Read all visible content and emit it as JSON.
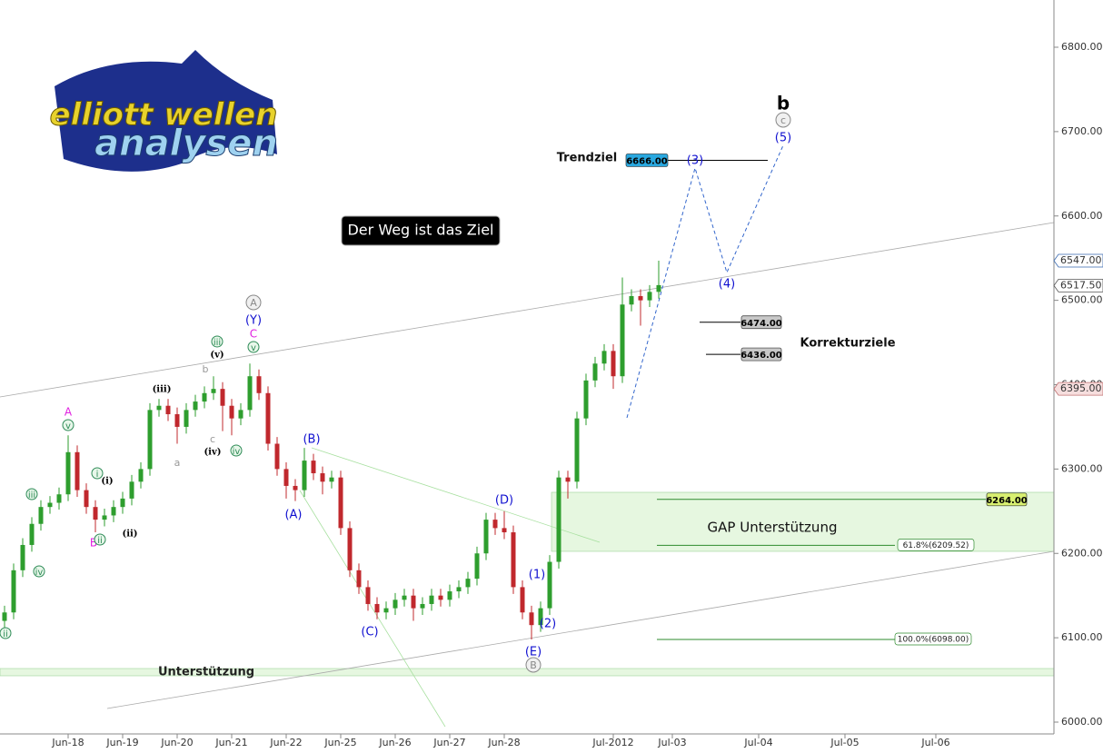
{
  "chart_data": {
    "type": "candlestick",
    "logo": {
      "line1": "elliott wellen",
      "line2": "analysen"
    },
    "slogan": "Der Weg ist das Ziel",
    "texts": {
      "trend": "Trendziel",
      "correction": "Korrekturziele",
      "gap": "GAP Unterstützung",
      "support": "Unterstützung"
    },
    "ylim": [
      5986,
      6856
    ],
    "yticks": [
      {
        "value": 6000,
        "label": "6000.00"
      },
      {
        "value": 6100,
        "label": "6100.00"
      },
      {
        "value": 6200,
        "label": "6200.00"
      },
      {
        "value": 6300,
        "label": "6300.00"
      },
      {
        "value": 6400,
        "label": "6400.00"
      },
      {
        "value": 6500,
        "label": "6500.00"
      },
      {
        "value": 6600,
        "label": "6600.00"
      },
      {
        "value": 6700,
        "label": "6700.00"
      },
      {
        "value": 6800,
        "label": "6800.00"
      }
    ],
    "xlim": [
      0,
      232
    ],
    "xticks": [
      {
        "value": 15,
        "label": "Jun-18"
      },
      {
        "value": 27,
        "label": "Jun-19"
      },
      {
        "value": 39,
        "label": "Jun-20"
      },
      {
        "value": 51,
        "label": "Jun-21"
      },
      {
        "value": 63,
        "label": "Jun-22"
      },
      {
        "value": 75,
        "label": "Jun-25"
      },
      {
        "value": 87,
        "label": "Jun-26"
      },
      {
        "value": 99,
        "label": "Jun-27"
      },
      {
        "value": 111,
        "label": "Jun-28"
      },
      {
        "value": 135,
        "label": "Jul-2012"
      },
      {
        "value": 148,
        "label": "Jul-03"
      },
      {
        "value": 167,
        "label": "Jul-04"
      },
      {
        "value": 186,
        "label": "Jul-05"
      },
      {
        "value": 206,
        "label": "Jul-06"
      }
    ],
    "up_color": "#2e9e2e",
    "down_color": "#c0282d",
    "x": [
      1,
      3,
      5,
      7,
      9,
      11,
      13,
      15,
      17,
      19,
      21,
      23,
      25,
      27,
      29,
      31,
      33,
      35,
      37,
      39,
      41,
      43,
      45,
      47,
      49,
      51,
      53,
      55,
      57,
      59,
      61,
      63,
      65,
      67,
      69,
      71,
      73,
      75,
      77,
      79,
      81,
      83,
      85,
      87,
      89,
      91,
      93,
      95,
      97,
      99,
      101,
      103,
      105,
      107,
      109,
      111,
      113,
      115,
      117,
      119,
      121,
      123,
      125,
      127,
      129,
      131,
      133,
      135,
      137,
      139,
      141,
      143,
      145
    ],
    "ohlc": [
      [
        6120,
        6138,
        6112,
        6130
      ],
      [
        6130,
        6188,
        6122,
        6180
      ],
      [
        6180,
        6218,
        6172,
        6210
      ],
      [
        6210,
        6243,
        6202,
        6235
      ],
      [
        6235,
        6263,
        6227,
        6255
      ],
      [
        6255,
        6268,
        6247,
        6260
      ],
      [
        6260,
        6278,
        6252,
        6270
      ],
      [
        6270,
        6340,
        6262,
        6320
      ],
      [
        6320,
        6328,
        6267,
        6275
      ],
      [
        6275,
        6283,
        6247,
        6255
      ],
      [
        6255,
        6263,
        6225,
        6240
      ],
      [
        6240,
        6253,
        6232,
        6245
      ],
      [
        6245,
        6263,
        6237,
        6255
      ],
      [
        6255,
        6273,
        6247,
        6265
      ],
      [
        6265,
        6293,
        6257,
        6285
      ],
      [
        6285,
        6308,
        6277,
        6300
      ],
      [
        6300,
        6378,
        6292,
        6370
      ],
      [
        6370,
        6383,
        6362,
        6375
      ],
      [
        6375,
        6383,
        6357,
        6365
      ],
      [
        6365,
        6373,
        6330,
        6350
      ],
      [
        6350,
        6378,
        6342,
        6370
      ],
      [
        6370,
        6388,
        6362,
        6380
      ],
      [
        6380,
        6398,
        6372,
        6390
      ],
      [
        6390,
        6410,
        6382,
        6395
      ],
      [
        6395,
        6403,
        6345,
        6375
      ],
      [
        6375,
        6383,
        6340,
        6360
      ],
      [
        6360,
        6378,
        6352,
        6370
      ],
      [
        6370,
        6425,
        6362,
        6410
      ],
      [
        6410,
        6418,
        6382,
        6390
      ],
      [
        6390,
        6398,
        6322,
        6330
      ],
      [
        6330,
        6338,
        6292,
        6300
      ],
      [
        6300,
        6308,
        6265,
        6280
      ],
      [
        6280,
        6288,
        6262,
        6275
      ],
      [
        6275,
        6325,
        6267,
        6310
      ],
      [
        6310,
        6318,
        6287,
        6295
      ],
      [
        6295,
        6303,
        6270,
        6285
      ],
      [
        6285,
        6298,
        6277,
        6290
      ],
      [
        6290,
        6298,
        6222,
        6230
      ],
      [
        6230,
        6238,
        6172,
        6180
      ],
      [
        6180,
        6188,
        6152,
        6160
      ],
      [
        6160,
        6168,
        6132,
        6140
      ],
      [
        6140,
        6148,
        6122,
        6130
      ],
      [
        6130,
        6143,
        6122,
        6135
      ],
      [
        6135,
        6153,
        6127,
        6145
      ],
      [
        6145,
        6158,
        6137,
        6150
      ],
      [
        6150,
        6158,
        6120,
        6135
      ],
      [
        6135,
        6148,
        6127,
        6140
      ],
      [
        6140,
        6158,
        6132,
        6150
      ],
      [
        6150,
        6158,
        6137,
        6145
      ],
      [
        6145,
        6163,
        6137,
        6155
      ],
      [
        6155,
        6168,
        6147,
        6160
      ],
      [
        6160,
        6178,
        6152,
        6170
      ],
      [
        6170,
        6208,
        6162,
        6200
      ],
      [
        6200,
        6248,
        6192,
        6240
      ],
      [
        6240,
        6248,
        6222,
        6230
      ],
      [
        6230,
        6250,
        6217,
        6225
      ],
      [
        6225,
        6233,
        6152,
        6160
      ],
      [
        6160,
        6168,
        6122,
        6130
      ],
      [
        6130,
        6138,
        6098,
        6115
      ],
      [
        6115,
        6143,
        6107,
        6135
      ],
      [
        6135,
        6198,
        6127,
        6190
      ],
      [
        6190,
        6298,
        6182,
        6290
      ],
      [
        6290,
        6298,
        6265,
        6285
      ],
      [
        6285,
        6368,
        6277,
        6360
      ],
      [
        6360,
        6413,
        6352,
        6405
      ],
      [
        6405,
        6433,
        6397,
        6425
      ],
      [
        6425,
        6448,
        6417,
        6440
      ],
      [
        6440,
        6448,
        6395,
        6410
      ],
      [
        6410,
        6527,
        6402,
        6495
      ],
      [
        6495,
        6513,
        6487,
        6505
      ],
      [
        6505,
        6513,
        6470,
        6500
      ],
      [
        6500,
        6518,
        6492,
        6510
      ],
      [
        6510,
        6547,
        6502,
        6518
      ]
    ],
    "levels": [
      {
        "value": 6666,
        "label": "6666.00"
      },
      {
        "value": 6474,
        "label": "6474.00"
      },
      {
        "value": 6436,
        "label": "6436.00"
      },
      {
        "value": 6264,
        "label": "6264.00"
      }
    ],
    "fib_levels": [
      {
        "value": 6209.52,
        "label": "61.8%(6209.52)"
      },
      {
        "value": 6098,
        "label": "100.0%(6098.00)"
      }
    ],
    "price_markers": [
      {
        "value": 6547,
        "label": "6547.00"
      },
      {
        "value": 6517.5,
        "label": "6517.50"
      },
      {
        "value": 6395,
        "label": "6395.00"
      }
    ],
    "annotations": [
      "A",
      "v",
      "B",
      "ii",
      "i",
      "(i)",
      "iii",
      "iv",
      "ii",
      "(ii)",
      "(iii)",
      "a",
      "(iv)",
      "c",
      "b",
      "(v)",
      "iii",
      "iv",
      "C",
      "v",
      "(Y)",
      "A",
      "(B)",
      "(A)",
      "(C)",
      "(D)",
      "(1)",
      "(2)",
      "(E)",
      "B",
      "(3)",
      "(4)",
      "(5)",
      "c",
      "b"
    ]
  }
}
